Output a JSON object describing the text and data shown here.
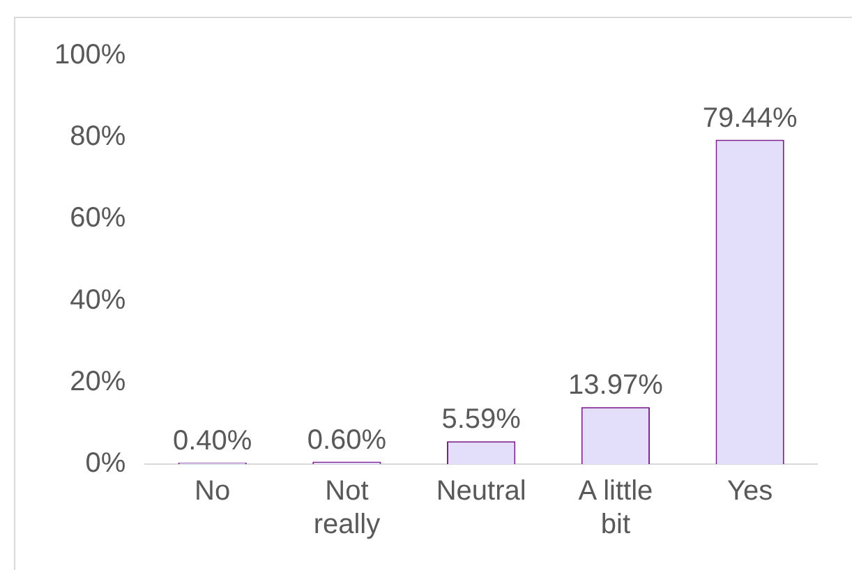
{
  "chart_data": {
    "type": "bar",
    "categories": [
      "No",
      "Not really",
      "Neutral",
      "A little bit",
      "Yes"
    ],
    "values": [
      0.4,
      0.6,
      5.59,
      13.97,
      79.44
    ],
    "value_labels": [
      "0.40%",
      "0.60%",
      "5.59%",
      "13.97%",
      "79.44%"
    ],
    "color": "#e3defa",
    "ylim": [
      0,
      100
    ],
    "yticks": [
      {
        "value": 0,
        "label": "0%"
      },
      {
        "value": 20,
        "label": "20%"
      },
      {
        "value": 40,
        "label": "40%"
      },
      {
        "value": 60,
        "label": "60%"
      },
      {
        "value": 80,
        "label": "80%"
      },
      {
        "value": 100,
        "label": "100%"
      }
    ],
    "grid": false,
    "legend": false
  }
}
